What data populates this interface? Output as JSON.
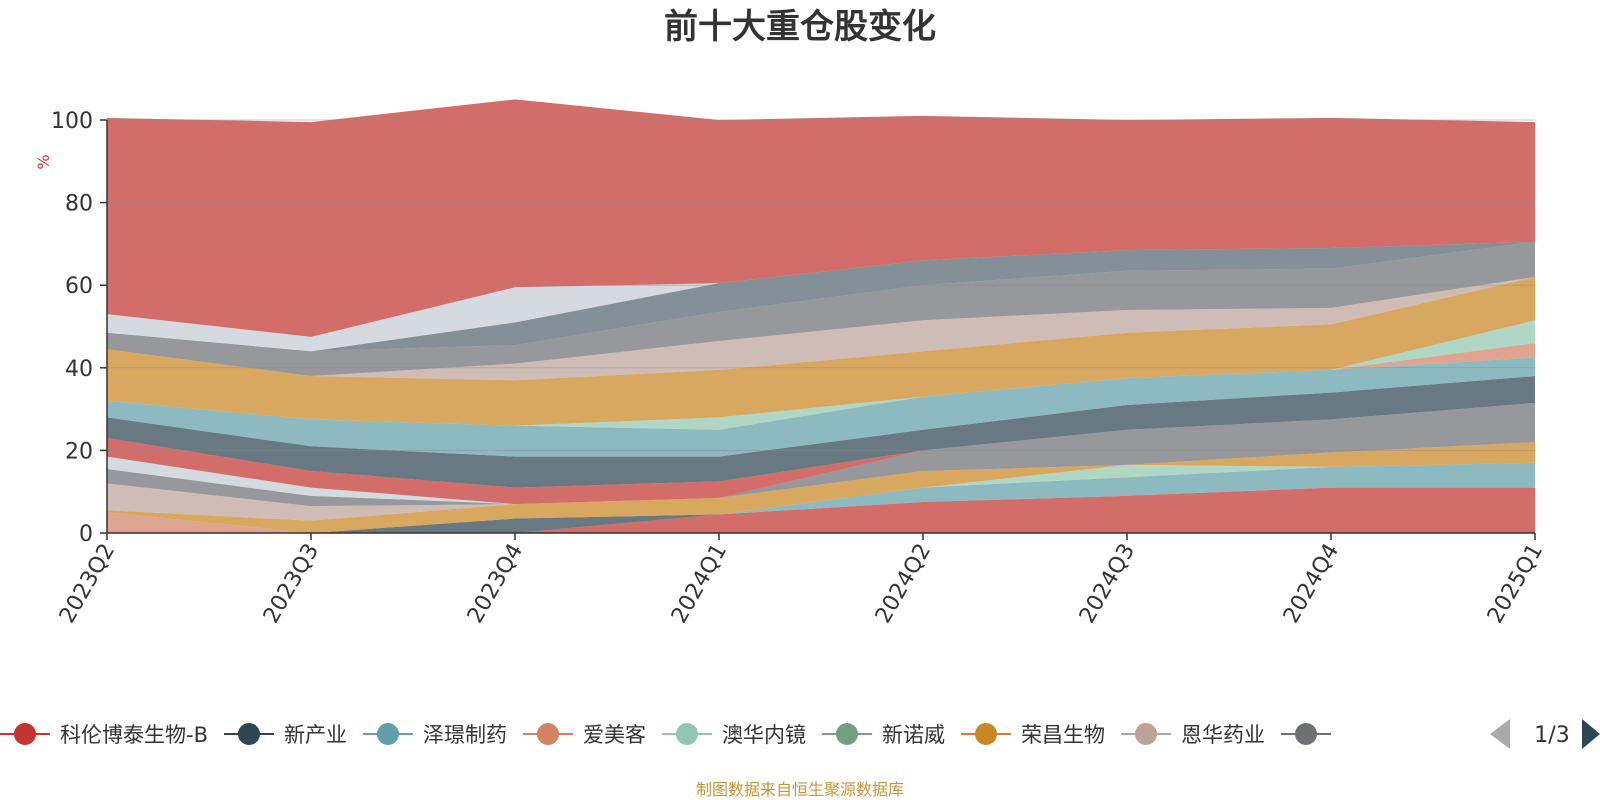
{
  "chart_data": {
    "type": "area",
    "stacked": true,
    "title": "前十大重仓股变化",
    "ylabel": "%",
    "ylim": [
      0,
      100
    ],
    "yticks": [
      0,
      20,
      40,
      60,
      80,
      100
    ],
    "grid": true,
    "categories": [
      "2023Q2",
      "2023Q3",
      "2023Q4",
      "2024Q1",
      "2024Q2",
      "2024Q3",
      "2024Q4",
      "2025Q1"
    ],
    "series": [
      {
        "name": "科伦博泰生物-B",
        "color": "#c23531",
        "values": [
          0,
          0,
          0,
          4.5,
          7.5,
          9,
          11,
          11
        ]
      },
      {
        "name": "新产业",
        "color": "#2f4554",
        "values": [
          0,
          0,
          3.5,
          0,
          0,
          0,
          0,
          0
        ]
      },
      {
        "name": "泽璟制药",
        "color": "#61a0a8",
        "values": [
          0,
          0,
          0,
          0,
          3.5,
          4.5,
          5,
          6
        ]
      },
      {
        "name": "爱美客",
        "color": "#d48265",
        "values": [
          5,
          0,
          0,
          0,
          0,
          0,
          0,
          0
        ]
      },
      {
        "name": "澳华内镜",
        "color": "#91c7ae",
        "values": [
          0,
          0,
          0,
          0,
          0,
          3,
          0,
          0
        ]
      },
      {
        "name": "新诺威",
        "color": "#749f83",
        "values": [
          0,
          0,
          0,
          0,
          0,
          0,
          0,
          0
        ]
      },
      {
        "name": "荣昌生物",
        "color": "#ca8622",
        "values": [
          0.5,
          3,
          3.5,
          4,
          4,
          0,
          3.5,
          5
        ]
      },
      {
        "name": "恩华药业",
        "color": "#bda29a",
        "values": [
          6.5,
          3.5,
          0,
          0,
          0,
          0,
          0,
          0
        ]
      },
      {
        "name": "",
        "color": "#6e7074",
        "values": [
          3.5,
          2.5,
          0,
          0,
          5,
          8.5,
          8,
          9.5
        ]
      },
      {
        "name": "",
        "color": "#546570",
        "values": [
          0,
          0,
          0,
          0,
          0,
          0,
          0,
          0
        ]
      },
      {
        "name": "",
        "color": "#c4ccd3",
        "values": [
          3,
          2,
          0,
          0,
          0,
          0,
          0,
          0
        ]
      },
      {
        "name": "",
        "color": "#c23531",
        "values": [
          4.5,
          4,
          4,
          4,
          0,
          0,
          0,
          0
        ]
      },
      {
        "name": "",
        "color": "#2f4554",
        "values": [
          5,
          6,
          7.5,
          6,
          5,
          6,
          6.5,
          6.5
        ]
      },
      {
        "name": "",
        "color": "#61a0a8",
        "values": [
          4,
          6.5,
          7.5,
          6.5,
          8,
          6.5,
          5.5,
          4.5
        ]
      },
      {
        "name": "",
        "color": "#d48265",
        "values": [
          0,
          0,
          0,
          0,
          0,
          0,
          0,
          3.5
        ]
      },
      {
        "name": "",
        "color": "#91c7ae",
        "values": [
          0,
          0,
          0,
          3,
          0,
          0,
          0,
          5.5
        ]
      },
      {
        "name": "",
        "color": "#ca8622",
        "values": [
          12.5,
          10.5,
          11,
          11.5,
          11,
          11,
          11,
          10.5
        ]
      },
      {
        "name": "",
        "color": "#bda29a",
        "values": [
          0,
          0,
          4,
          7,
          7.5,
          5.5,
          4,
          0
        ]
      },
      {
        "name": "",
        "color": "#6e7074",
        "values": [
          4,
          6,
          4.5,
          7,
          8.5,
          9.5,
          9.5,
          8.5
        ]
      },
      {
        "name": "",
        "color": "#546570",
        "values": [
          0,
          0,
          5.5,
          7,
          6,
          5,
          5,
          0
        ]
      },
      {
        "name": "",
        "color": "#c4ccd3",
        "values": [
          4.5,
          3.5,
          8.5,
          0,
          0,
          0,
          0,
          0
        ]
      },
      {
        "name": "",
        "color": "#c23531",
        "values": [
          47.5,
          52,
          45.5,
          39.5,
          35,
          31.5,
          31.5,
          29
        ]
      }
    ]
  },
  "legend": {
    "items": [
      {
        "label": "科伦博泰生物-B",
        "color": "#c23531"
      },
      {
        "label": "新产业",
        "color": "#2f4554"
      },
      {
        "label": "泽璟制药",
        "color": "#61a0a8"
      },
      {
        "label": "爱美客",
        "color": "#d48265"
      },
      {
        "label": "澳华内镜",
        "color": "#91c7ae"
      },
      {
        "label": "新诺威",
        "color": "#749f83"
      },
      {
        "label": "荣昌生物",
        "color": "#ca8622"
      },
      {
        "label": "恩华药业",
        "color": "#bda29a"
      },
      {
        "label": "",
        "color": "#6e7074"
      }
    ],
    "page": "1/3"
  },
  "footer": {
    "source": "制图数据来自恒生聚源数据库"
  }
}
